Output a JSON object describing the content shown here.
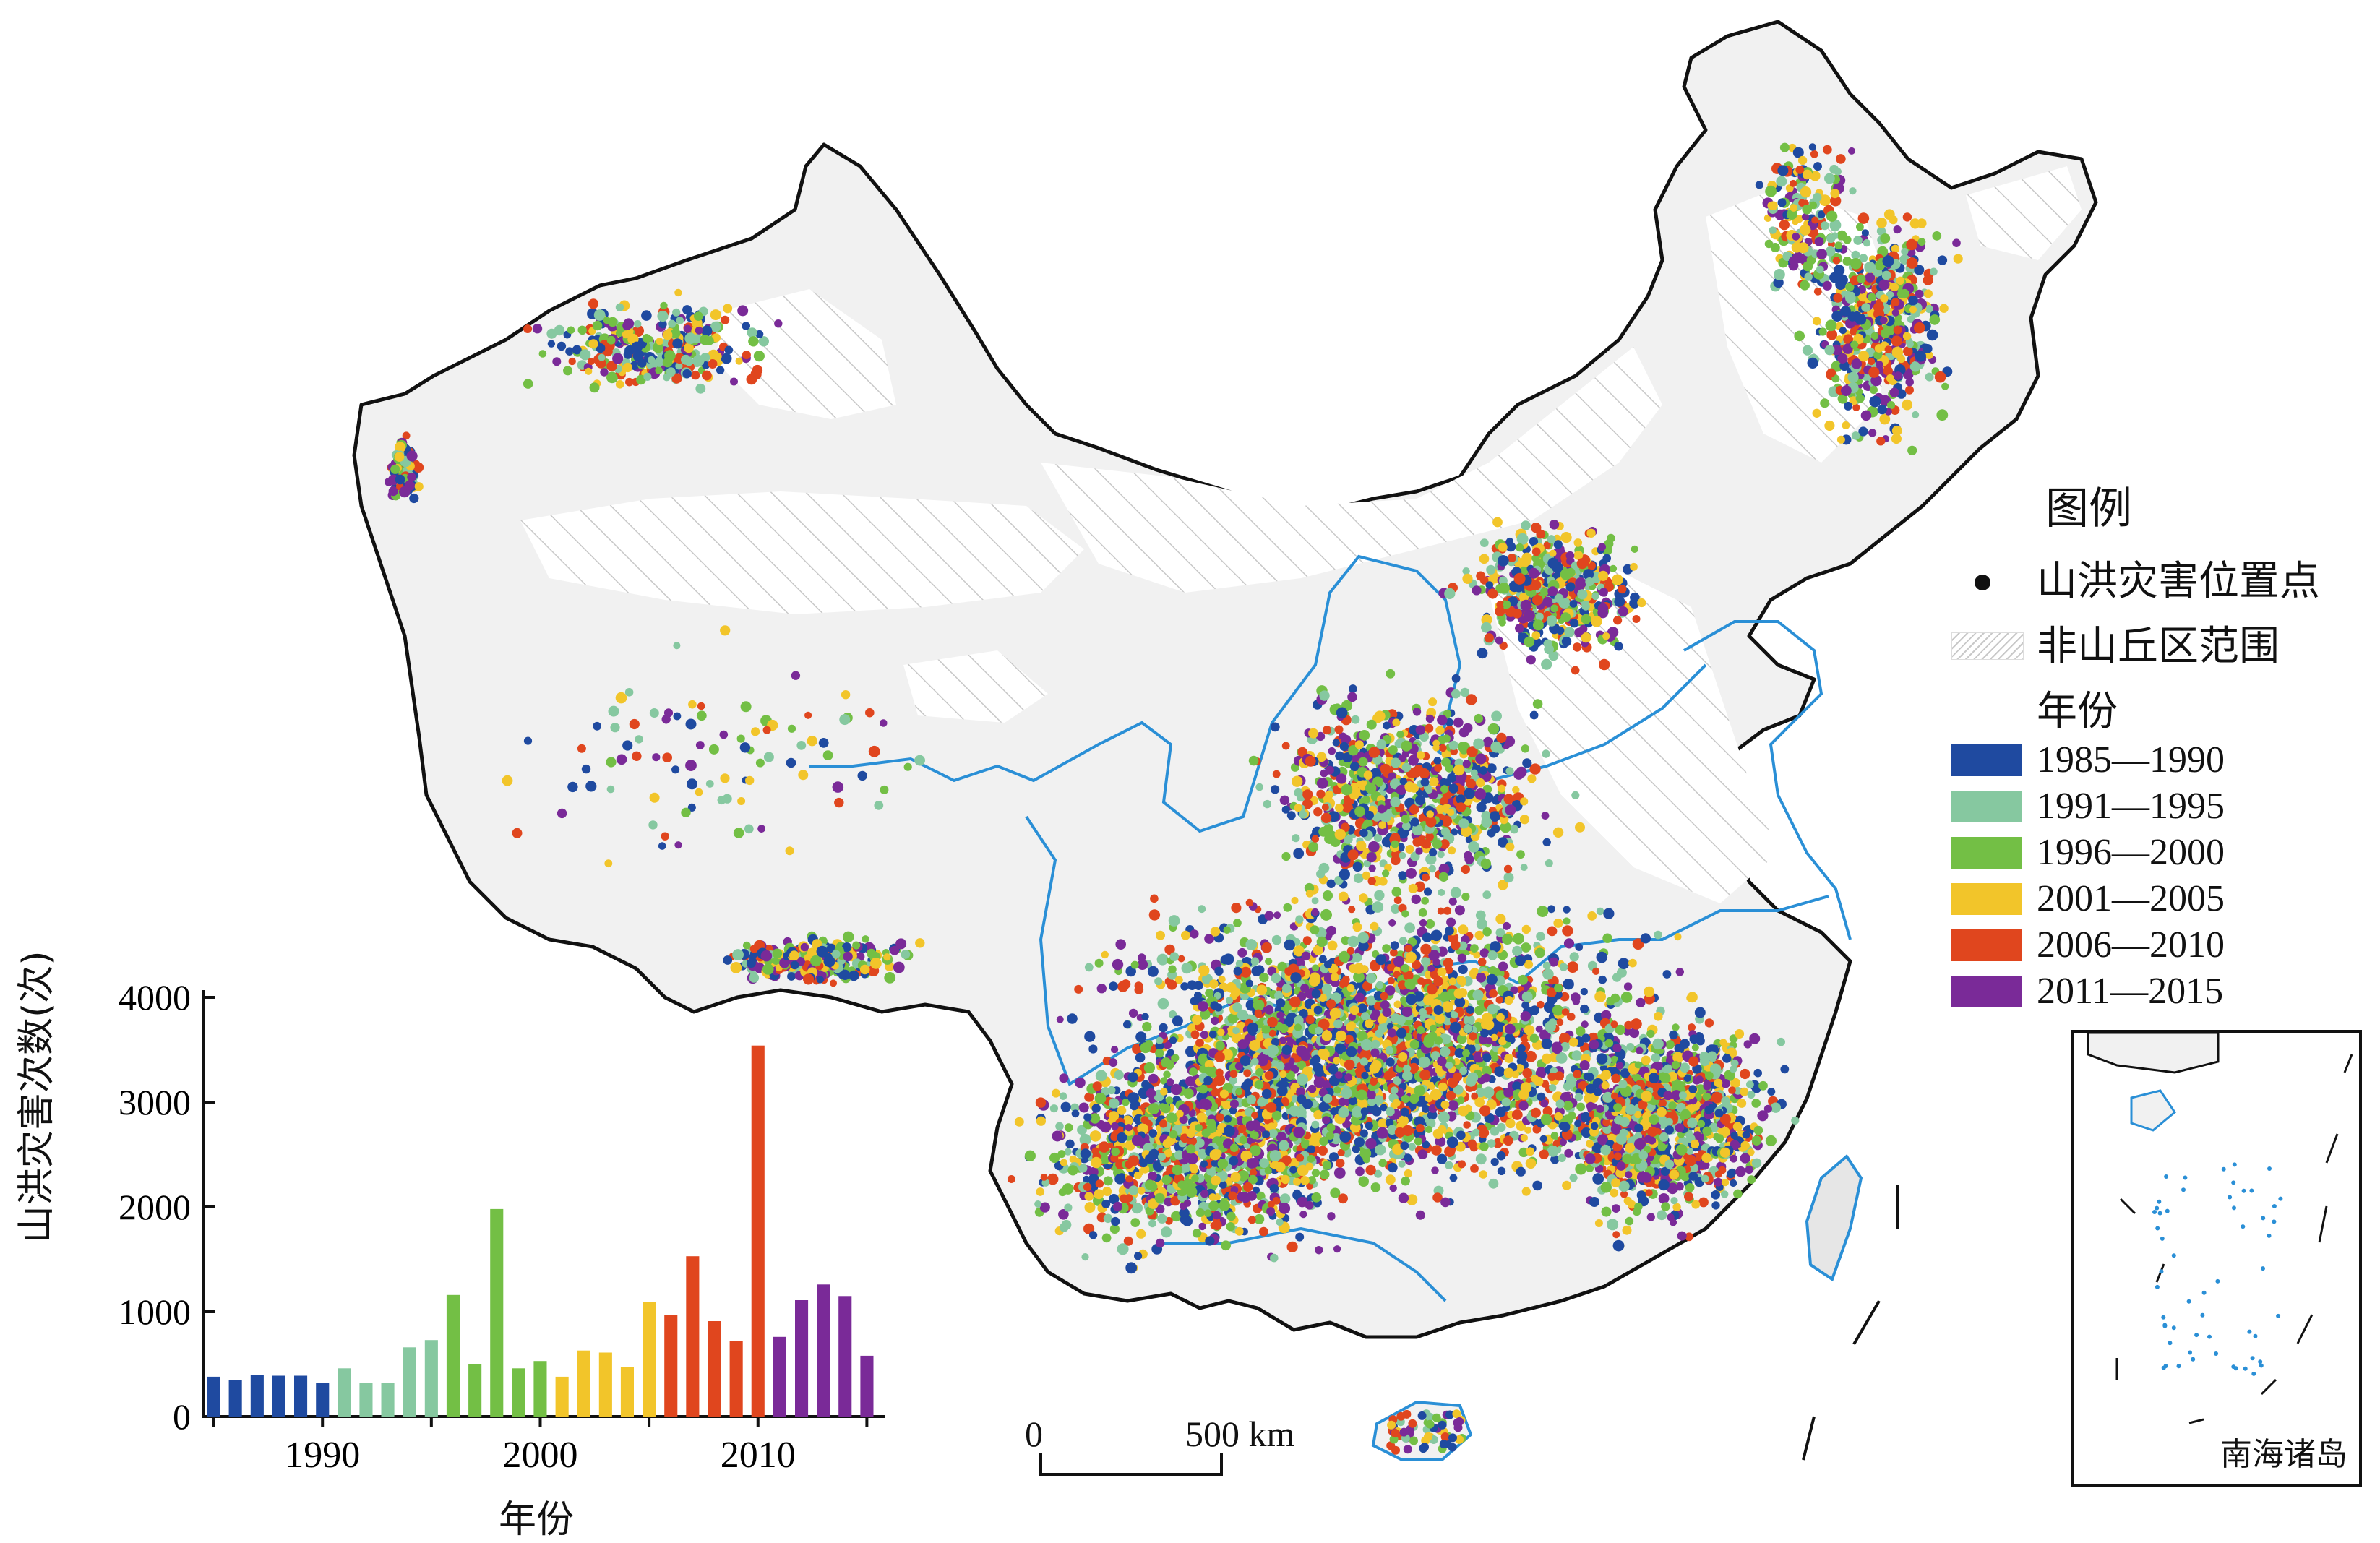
{
  "legend": {
    "title": "图例",
    "point_label": "山洪灾害位置点",
    "nonmountain_label": "非山丘区范围",
    "year_title": "年份",
    "periods": [
      {
        "label": "1985—1990",
        "color": "#1f4aa0"
      },
      {
        "label": "1991—1995",
        "color": "#86c8a0"
      },
      {
        "label": "1996—2000",
        "color": "#73bf45"
      },
      {
        "label": "2001—2005",
        "color": "#f2c52a"
      },
      {
        "label": "2006—2010",
        "color": "#e0461e"
      },
      {
        "label": "2011—2015",
        "color": "#7a2a98"
      }
    ]
  },
  "map": {
    "river_color": "#2a8fd6",
    "boundary_color": "#111111",
    "scale_bar": {
      "start_label": "0",
      "end_label": "500 km"
    },
    "inset_label": "南海诸岛"
  },
  "chart_data": {
    "type": "bar",
    "ylabel": "山洪灾害次数(次)",
    "xlabel": "年份",
    "ylim": [
      0,
      4000
    ],
    "yticks": [
      "0",
      "1000",
      "2000",
      "3000",
      "4000"
    ],
    "xtick_labels": [
      "1990",
      "2000",
      "2010"
    ],
    "xtick_years": [
      1990,
      2000,
      2010
    ],
    "x": [
      1985,
      1986,
      1987,
      1988,
      1989,
      1990,
      1991,
      1992,
      1993,
      1994,
      1995,
      1996,
      1997,
      1998,
      1999,
      2000,
      2001,
      2002,
      2003,
      2004,
      2005,
      2006,
      2007,
      2008,
      2009,
      2010,
      2011,
      2012,
      2013,
      2014,
      2015
    ],
    "values": [
      380,
      350,
      400,
      390,
      390,
      320,
      460,
      320,
      320,
      660,
      730,
      1160,
      500,
      1980,
      460,
      530,
      380,
      630,
      610,
      470,
      1090,
      970,
      1530,
      910,
      720,
      3540,
      760,
      1110,
      1260,
      1150,
      580
    ],
    "period_index": [
      0,
      0,
      0,
      0,
      0,
      0,
      1,
      1,
      1,
      1,
      1,
      2,
      2,
      2,
      2,
      2,
      3,
      3,
      3,
      3,
      3,
      4,
      4,
      4,
      4,
      4,
      5,
      5,
      5,
      5,
      5
    ]
  }
}
